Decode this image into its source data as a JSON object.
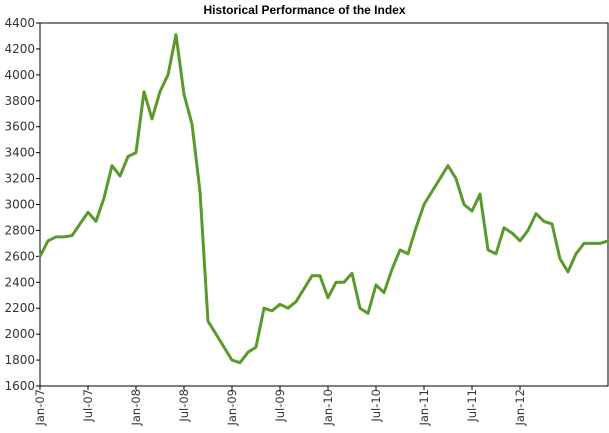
{
  "chart_data": {
    "type": "line",
    "title": "Historical Performance of the Index",
    "xlabel": "",
    "ylabel": "",
    "ylim": [
      1600,
      4400
    ],
    "xlim": [
      "2007-01",
      "2012-12"
    ],
    "grid": false,
    "legend": "none",
    "line_color": "#5a9a2a",
    "y_ticks": [
      1600,
      1800,
      2000,
      2200,
      2400,
      2600,
      2800,
      3000,
      3200,
      3400,
      3600,
      3800,
      4000,
      4200,
      4400
    ],
    "x_ticks": [
      {
        "date": "2007-01",
        "label": "Jan-07"
      },
      {
        "date": "2007-07",
        "label": "Jul-07"
      },
      {
        "date": "2008-01",
        "label": "Jan-08"
      },
      {
        "date": "2008-07",
        "label": "Jul-08"
      },
      {
        "date": "2009-01",
        "label": "Jan-09"
      },
      {
        "date": "2009-07",
        "label": "Jul-09"
      },
      {
        "date": "2010-01",
        "label": "Jan-10"
      },
      {
        "date": "2010-07",
        "label": "Jul-10"
      },
      {
        "date": "2011-01",
        "label": "Jan-11"
      },
      {
        "date": "2011-07",
        "label": "Jul-11"
      },
      {
        "date": "2012-01",
        "label": "Jan-12"
      }
    ],
    "series": [
      {
        "x": [
          "2007-01",
          "2007-02",
          "2007-03",
          "2007-04",
          "2007-05",
          "2007-06",
          "2007-07",
          "2007-08",
          "2007-09",
          "2007-10",
          "2007-11",
          "2007-12",
          "2008-01",
          "2008-02",
          "2008-03",
          "2008-04",
          "2008-05",
          "2008-06",
          "2008-07",
          "2008-08",
          "2008-09",
          "2008-10",
          "2008-11",
          "2008-12",
          "2009-01",
          "2009-02",
          "2009-03",
          "2009-04",
          "2009-05",
          "2009-06",
          "2009-07",
          "2009-08",
          "2009-09",
          "2009-10",
          "2009-11",
          "2009-12",
          "2010-01",
          "2010-02",
          "2010-03",
          "2010-04",
          "2010-05",
          "2010-06",
          "2010-07",
          "2010-08",
          "2010-09",
          "2010-10",
          "2010-11",
          "2010-12",
          "2011-01",
          "2011-02",
          "2011-03",
          "2011-04",
          "2011-05",
          "2011-06",
          "2011-07",
          "2011-08",
          "2011-09",
          "2011-10",
          "2011-11",
          "2011-12",
          "2012-01",
          "2012-02",
          "2012-03",
          "2012-04",
          "2012-05",
          "2012-06",
          "2012-07",
          "2012-08",
          "2012-09",
          "2012-10",
          "2012-11",
          "2012-12"
        ],
        "values": [
          2600,
          2720,
          2750,
          2750,
          2760,
          2850,
          2940,
          2870,
          3050,
          3300,
          3220,
          3370,
          3400,
          3870,
          3660,
          3870,
          4000,
          4310,
          3850,
          3620,
          3100,
          2100,
          2000,
          1900,
          1800,
          1780,
          1860,
          1900,
          2200,
          2180,
          2230,
          2200,
          2250,
          2350,
          2450,
          2450,
          2280,
          2400,
          2400,
          2470,
          2200,
          2160,
          2380,
          2320,
          2500,
          2650,
          2620,
          2820,
          3000,
          3100,
          3200,
          3300,
          3200,
          3000,
          2950,
          3080,
          2650,
          2620,
          2820,
          2780,
          2720,
          2800,
          2930,
          2870,
          2850,
          2580,
          2480,
          2620,
          2700,
          2700,
          2700,
          2720
        ]
      }
    ]
  }
}
